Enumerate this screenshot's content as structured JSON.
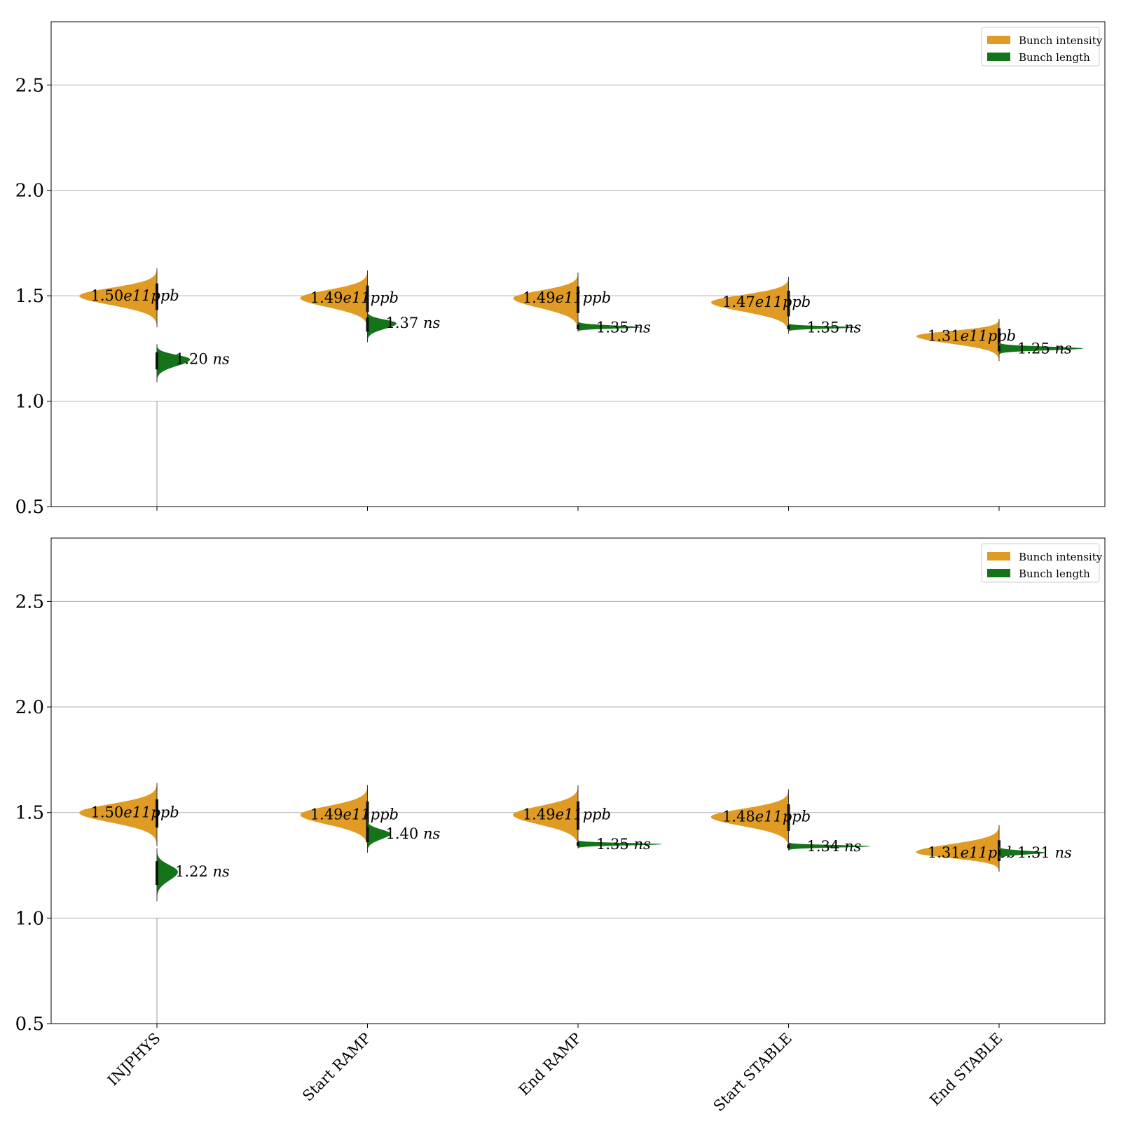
{
  "colors": {
    "intensity": "#e09b25",
    "length": "#13741a",
    "grid": "#b0b0b0",
    "axis": "#000000"
  },
  "legend": {
    "position": "upper right",
    "items": [
      {
        "label": "Bunch intensity",
        "color": "#e09b25"
      },
      {
        "label": "Bunch length",
        "color": "#13741a"
      }
    ]
  },
  "chart_data": [
    {
      "type": "violin",
      "panel": "top",
      "ylim": [
        0.5,
        2.8
      ],
      "yticks": [
        "0.5",
        "1.0",
        "1.5",
        "2.0",
        "2.5"
      ],
      "grid": "horizontal",
      "legend_placement": "top-right",
      "categories": [
        "INJPHYS",
        "Start RAMP",
        "End RAMP",
        "Start STABLE",
        "End STABLE"
      ],
      "series": [
        {
          "name": "Bunch intensity",
          "side": "left",
          "color": "#e09b25",
          "annotations": [
            "1.50",
            "1.49",
            "1.49",
            "1.47",
            "1.31"
          ],
          "annotation_unit": "e11ppb",
          "medians": [
            1.5,
            1.49,
            1.49,
            1.47,
            1.31
          ],
          "ranges": [
            [
              1.35,
              1.63
            ],
            [
              1.34,
              1.62
            ],
            [
              1.33,
              1.61
            ],
            [
              1.32,
              1.59
            ],
            [
              1.19,
              1.39
            ]
          ],
          "max_width": [
            0.37,
            0.32,
            0.31,
            0.37,
            0.4
          ]
        },
        {
          "name": "Bunch length",
          "side": "right",
          "color": "#13741a",
          "annotations": [
            "1.20",
            "1.37",
            "1.35",
            "1.35",
            "1.25"
          ],
          "annotation_unit": "ns",
          "medians": [
            1.2,
            1.37,
            1.35,
            1.35,
            1.25
          ],
          "ranges": [
            [
              1.09,
              1.27
            ],
            [
              1.28,
              1.43
            ],
            [
              1.33,
              1.38
            ],
            [
              1.33,
              1.37
            ],
            [
              1.22,
              1.28
            ]
          ],
          "max_width": [
            0.16,
            0.14,
            0.3,
            0.33,
            0.4
          ]
        }
      ]
    },
    {
      "type": "violin",
      "panel": "bottom",
      "ylim": [
        0.5,
        2.8
      ],
      "yticks": [
        "0.5",
        "1.0",
        "1.5",
        "2.0",
        "2.5"
      ],
      "grid": "horizontal",
      "legend_placement": "top-right",
      "categories": [
        "INJPHYS",
        "Start RAMP",
        "End RAMP",
        "Start STABLE",
        "End STABLE"
      ],
      "xtick_rotation": 45,
      "series": [
        {
          "name": "Bunch intensity",
          "side": "left",
          "color": "#e09b25",
          "annotations": [
            "1.50",
            "1.49",
            "1.49",
            "1.48",
            "1.31"
          ],
          "annotation_unit": "e11ppb",
          "medians": [
            1.5,
            1.49,
            1.49,
            1.48,
            1.31
          ],
          "ranges": [
            [
              1.34,
              1.64
            ],
            [
              1.33,
              1.63
            ],
            [
              1.33,
              1.63
            ],
            [
              1.33,
              1.61
            ],
            [
              1.22,
              1.44
            ]
          ],
          "max_width": [
            0.37,
            0.32,
            0.31,
            0.37,
            0.4
          ]
        },
        {
          "name": "Bunch length",
          "side": "right",
          "color": "#13741a",
          "annotations": [
            "1.22",
            "1.40",
            "1.35",
            "1.34",
            "1.31"
          ],
          "annotation_unit": "ns",
          "medians": [
            1.22,
            1.4,
            1.35,
            1.34,
            1.31
          ],
          "ranges": [
            [
              1.08,
              1.33
            ],
            [
              1.31,
              1.47
            ],
            [
              1.33,
              1.37
            ],
            [
              1.32,
              1.36
            ],
            [
              1.28,
              1.34
            ]
          ],
          "max_width": [
            0.1,
            0.11,
            0.4,
            0.39,
            0.22
          ]
        }
      ]
    }
  ]
}
